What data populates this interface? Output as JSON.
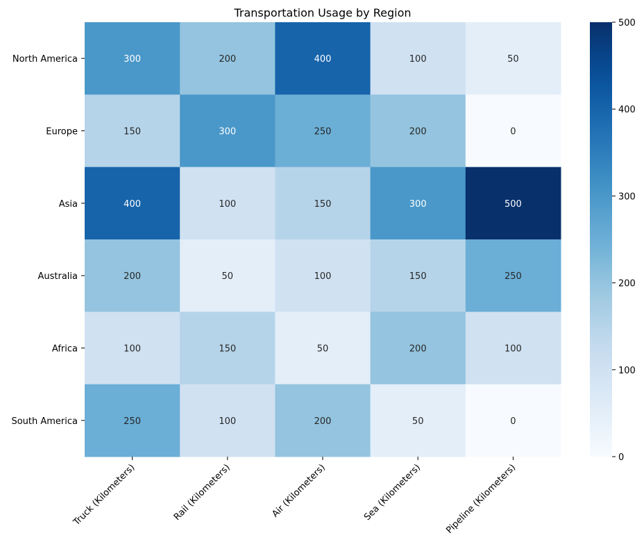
{
  "chart_data": {
    "type": "heatmap",
    "title": "Transportation Usage by Region",
    "xlabel": "",
    "ylabel": "",
    "x_categories": [
      "Truck (Kilometers)",
      "Rail (Kilometers)",
      "Air (Kilometers)",
      "Sea (Kilometers)",
      "Pipeline (Kilometers)"
    ],
    "y_categories": [
      "North America",
      "Europe",
      "Asia",
      "Australia",
      "Africa",
      "South America"
    ],
    "values": [
      [
        300,
        200,
        400,
        100,
        50
      ],
      [
        150,
        300,
        250,
        200,
        0
      ],
      [
        400,
        100,
        150,
        300,
        500
      ],
      [
        200,
        50,
        100,
        150,
        250
      ],
      [
        100,
        150,
        50,
        200,
        100
      ],
      [
        250,
        100,
        200,
        50,
        0
      ]
    ],
    "colorbar": {
      "min": 0,
      "max": 500,
      "ticks": [
        0,
        100,
        200,
        300,
        400,
        500
      ]
    },
    "colormap": "Blues",
    "grid": false,
    "legend": "colorbar-right"
  }
}
